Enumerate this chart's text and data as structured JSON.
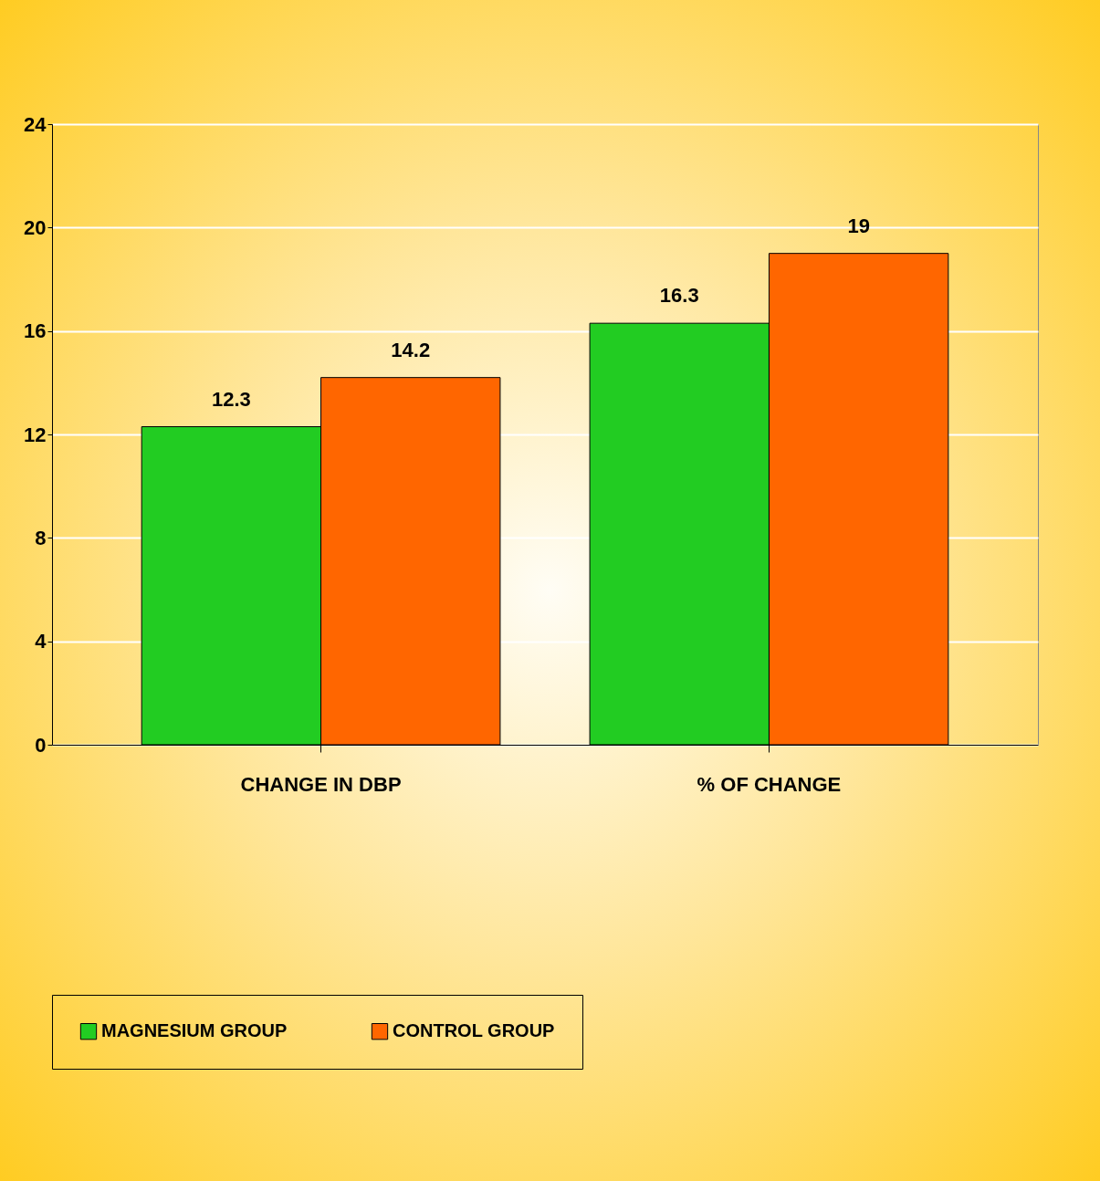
{
  "chart_data": {
    "type": "bar",
    "categories": [
      "CHANGE IN DBP",
      "% OF CHANGE"
    ],
    "series": [
      {
        "name": "MAGNESIUM GROUP",
        "color": "#22cc22",
        "values": [
          12.3,
          16.3
        ]
      },
      {
        "name": "CONTROL GROUP",
        "color": "#ff6600",
        "values": [
          14.2,
          19
        ]
      }
    ],
    "ylim": [
      0,
      24
    ],
    "yticks": [
      0,
      4,
      8,
      12,
      16,
      20,
      24
    ],
    "grid": "y",
    "legend": "bottom",
    "data_labels": true
  }
}
